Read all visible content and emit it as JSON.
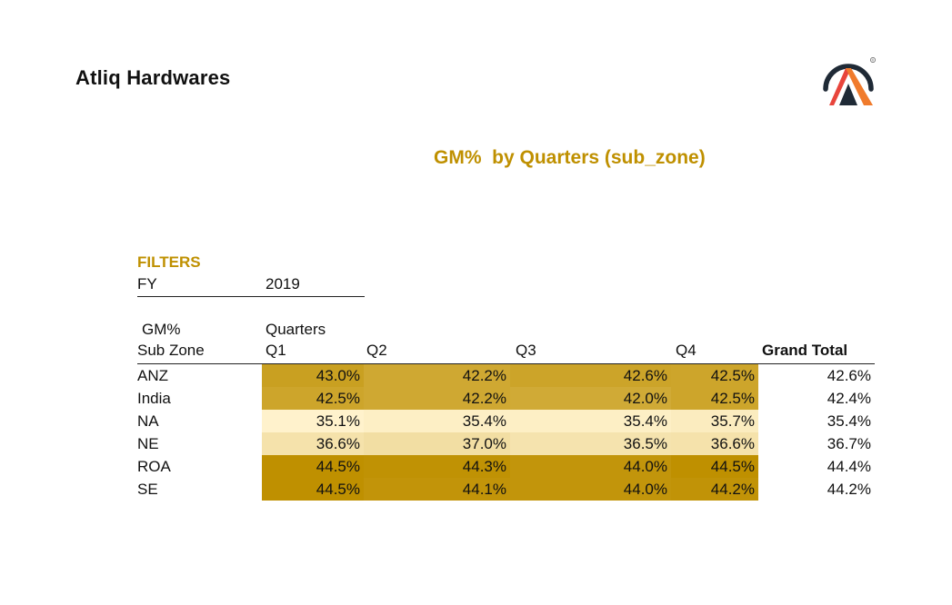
{
  "header": {
    "company": "Atliq Hardwares",
    "logo_icon": "atliq-logo-icon",
    "logo_registered": "®"
  },
  "report": {
    "title": "GM%  by Quarters (sub_zone)"
  },
  "filters": {
    "heading": "FILTERS",
    "items": [
      {
        "label": "FY",
        "value": "2019"
      }
    ]
  },
  "pivot": {
    "value_field": "GM%",
    "column_field": "Quarters",
    "row_field": "Sub Zone",
    "columns": [
      "Q1",
      "Q2",
      "Q3",
      "Q4"
    ],
    "grand_total_label": "Grand Total",
    "rows": [
      {
        "sub_zone": "ANZ",
        "q1": "43.0%",
        "q2": "42.2%",
        "q3": "42.6%",
        "q4": "42.5%",
        "total": "42.6%"
      },
      {
        "sub_zone": "India",
        "q1": "42.5%",
        "q2": "42.2%",
        "q3": "42.0%",
        "q4": "42.5%",
        "total": "42.4%"
      },
      {
        "sub_zone": "NA",
        "q1": "35.1%",
        "q2": "35.4%",
        "q3": "35.4%",
        "q4": "35.7%",
        "total": "35.4%"
      },
      {
        "sub_zone": "NE",
        "q1": "36.6%",
        "q2": "37.0%",
        "q3": "36.5%",
        "q4": "36.6%",
        "total": "36.7%"
      },
      {
        "sub_zone": "ROA",
        "q1": "44.5%",
        "q2": "44.3%",
        "q3": "44.0%",
        "q4": "44.5%",
        "total": "44.4%"
      },
      {
        "sub_zone": "SE",
        "q1": "44.5%",
        "q2": "44.1%",
        "q3": "44.0%",
        "q4": "44.2%",
        "total": "44.2%"
      }
    ],
    "heatmap_colors": {
      "min": "#fff2cc",
      "max": "#bf9000"
    }
  }
}
